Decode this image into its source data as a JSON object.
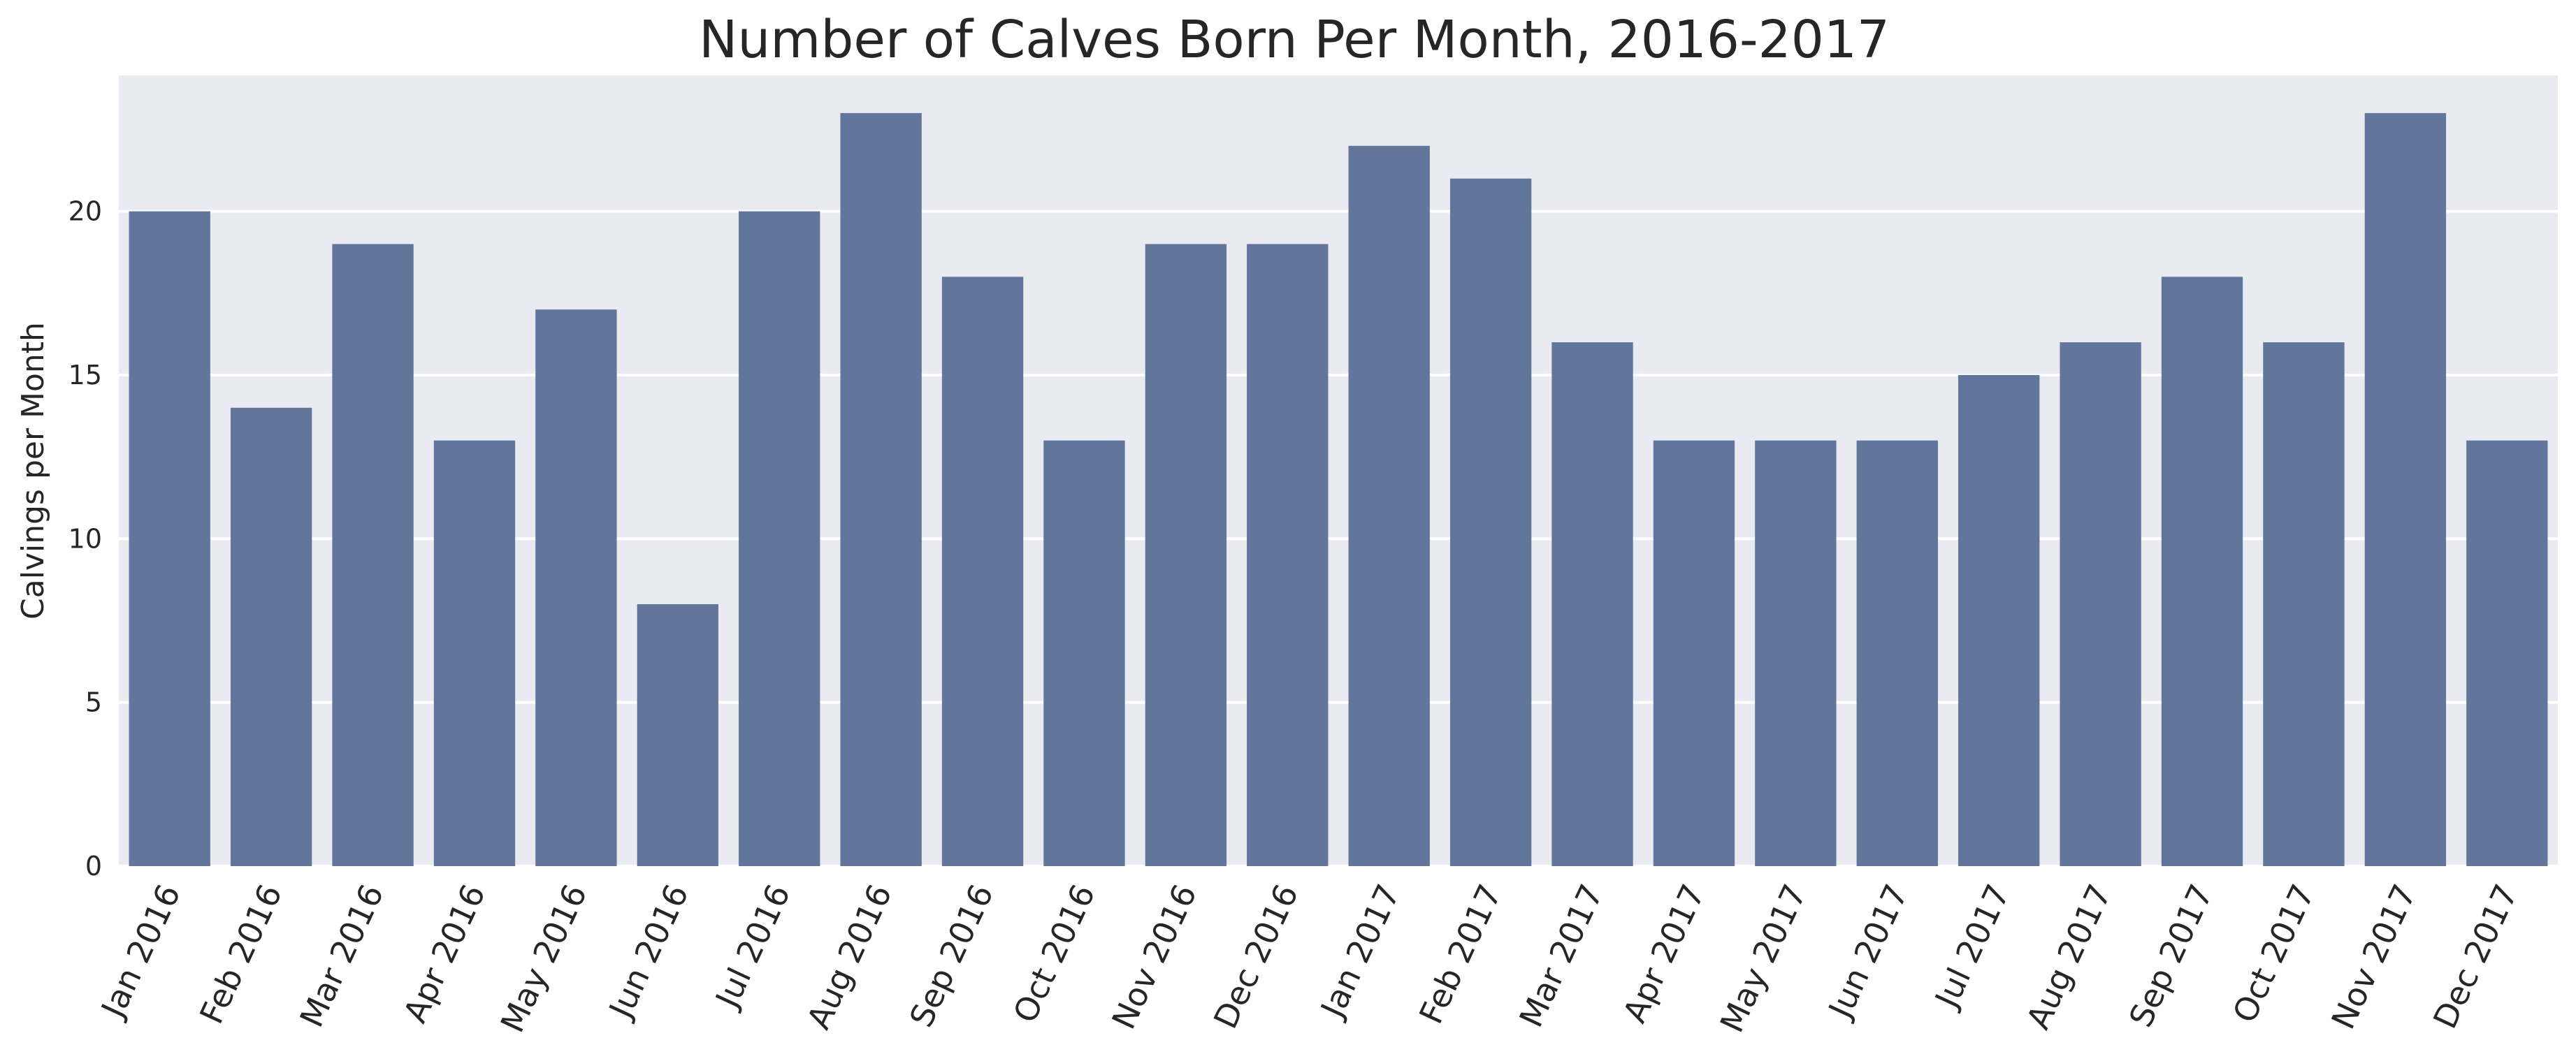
{
  "chart_data": {
    "type": "bar",
    "title": "Number of Calves Born Per Month, 2016-2017",
    "xlabel": "",
    "ylabel": "Calvings per Month",
    "categories": [
      "Jan 2016",
      "Feb 2016",
      "Mar 2016",
      "Apr 2016",
      "May 2016",
      "Jun 2016",
      "Jul 2016",
      "Aug 2016",
      "Sep 2016",
      "Oct 2016",
      "Nov 2016",
      "Dec 2016",
      "Jan 2017",
      "Feb 2017",
      "Mar 2017",
      "Apr 2017",
      "May 2017",
      "Jun 2017",
      "Jul 2017",
      "Aug 2017",
      "Sep 2017",
      "Oct 2017",
      "Nov 2017",
      "Dec 2017"
    ],
    "values": [
      20,
      14,
      19,
      13,
      17,
      8,
      20,
      23,
      18,
      13,
      19,
      19,
      22,
      21,
      16,
      13,
      13,
      13,
      15,
      16,
      18,
      16,
      23,
      13
    ],
    "ylim": [
      0,
      24.15
    ],
    "yticks": [
      "0",
      "5",
      "10",
      "15",
      "20"
    ],
    "grid": true,
    "colors": {
      "bar": "#61769a",
      "plot_background": "#eaeaf2",
      "grid": "#ffffff"
    }
  }
}
